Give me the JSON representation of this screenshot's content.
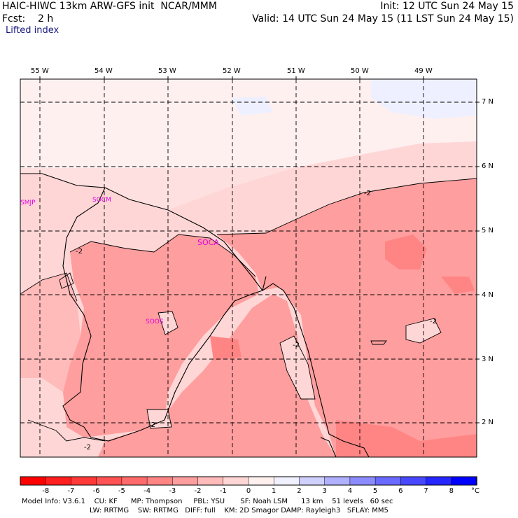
{
  "header": {
    "model_title": "HAIC-HIWC 13km ARW-GFS init  NCAR/MMM",
    "init": "Init: 12 UTC Sun 24 May 15",
    "fcst": "Fcst:    2 h",
    "valid": "Valid: 14 UTC Sun 24 May 15 (11 LST Sun 24 May 15)",
    "field": "Lifted index"
  },
  "lon_labels": [
    "55 W",
    "54 W",
    "53 W",
    "52 W",
    "51 W",
    "50 W",
    "49 W"
  ],
  "lat_labels": [
    "7 N",
    "6 N",
    "5 N",
    "4 N",
    "3 N",
    "2 N"
  ],
  "stations": [
    "SMJP",
    "SOCM",
    "SOCA",
    "SOOS"
  ],
  "contour_labels": [
    "-2",
    "-2",
    "-2",
    "-2",
    "-2",
    "-2"
  ],
  "colorbar": {
    "labels": [
      "-8",
      "-7",
      "-6",
      "-5",
      "-4",
      "-3",
      "-2",
      "-1",
      "0",
      "1",
      "2",
      "3",
      "4",
      "5",
      "6",
      "7",
      "8"
    ],
    "unit": "°C",
    "colors": [
      "#ff0000",
      "#ff1f1f",
      "#ff3838",
      "#ff5252",
      "#ff6b6b",
      "#ff8585",
      "#ff9e9e",
      "#ffbaba",
      "#ffd6d6",
      "#fff0f0",
      "#f0f0ff",
      "#d0d0ff",
      "#b0b0ff",
      "#8c8cff",
      "#6a6aff",
      "#4848ff",
      "#2626ff",
      "#0000ff"
    ]
  },
  "model_info": {
    "line1": "Model Info: V3.6.1    CU: KF      MP: Thompson     PBL: YSU       SF: Noah LSM      13 km    51 levels   60 sec",
    "line2": "LW: RRTMG    SW: RRTMG   DIFF: full    KM: 2D Smagor DAMP: Rayleigh3   SFLAY: MM5"
  }
}
